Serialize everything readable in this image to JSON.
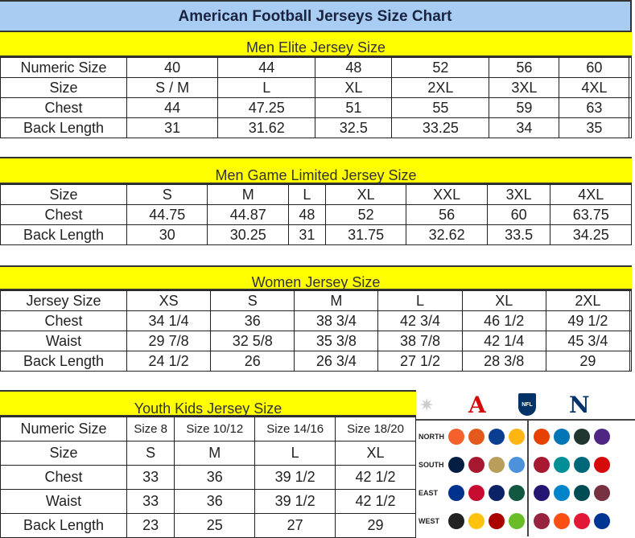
{
  "title": "American Football Jerseys Size Chart",
  "men_elite": {
    "heading": "Men Elite Jersey Size",
    "rows": [
      [
        "Numeric Size",
        "40",
        "44",
        "48",
        "52",
        "56",
        "60",
        ""
      ],
      [
        "Size",
        "S / M",
        "L",
        "XL",
        "2XL",
        "3XL",
        "4XL",
        ""
      ],
      [
        "Chest",
        "44",
        "47.25",
        "51",
        "55",
        "59",
        "63",
        ""
      ],
      [
        "Back Length",
        "31",
        "31.62",
        "32.5",
        "33.25",
        "34",
        "35",
        ""
      ]
    ]
  },
  "men_game": {
    "heading": "Men Game Limited Jersey Size",
    "rows": [
      [
        "Size",
        "S",
        "M",
        "L",
        "XL",
        "XXL",
        "3XL",
        "4XL"
      ],
      [
        "Chest",
        "44.75",
        "44.87",
        "48",
        "52",
        "56",
        "60",
        "63.75"
      ],
      [
        "Back Length",
        "30",
        "30.25",
        "31",
        "31.75",
        "32.62",
        "33.5",
        "34.25"
      ]
    ]
  },
  "women": {
    "heading": "Women Jersey Size",
    "rows": [
      [
        "Jersey Size",
        "XS",
        "S",
        "M",
        "L",
        "XL",
        "2XL",
        ""
      ],
      [
        "Chest",
        "34 1/4",
        "36",
        "38 3/4",
        "42 3/4",
        "46 1/2",
        "49 1/2",
        ""
      ],
      [
        "Waist",
        "29 7/8",
        "32 5/8",
        "35 3/8",
        "38 7/8",
        "42 1/4",
        "45 3/4",
        ""
      ],
      [
        "Back Length",
        "24 1/2",
        "26",
        "26 3/4",
        "27 1/2",
        "28 3/8",
        "29",
        ""
      ]
    ]
  },
  "youth": {
    "heading": "Youth Kids Jersey Size",
    "rows": [
      [
        "Numeric Size",
        "Size 8",
        "Size 10/12",
        "Size 14/16",
        "Size 18/20"
      ],
      [
        "Size",
        "S",
        "M",
        "L",
        "XL"
      ],
      [
        "Chest",
        "33",
        "36",
        "39 1/2",
        "42 1/2"
      ],
      [
        "Waist",
        "33",
        "36",
        "39 1/2",
        "42 1/2"
      ],
      [
        "Back Length",
        "23",
        "25",
        "27",
        "29"
      ]
    ]
  },
  "league_panel": {
    "conferences": [
      "AFC",
      "NFL",
      "NFC"
    ],
    "divisions": [
      "NORTH",
      "SOUTH",
      "EAST",
      "WEST"
    ],
    "afc_colors": [
      [
        "#f4612c",
        "#e35a1c",
        "#0b3d91",
        "#ffb612"
      ],
      [
        "#041e42",
        "#a71930",
        "#b89d5b",
        "#4b92db"
      ],
      [
        "#00338d",
        "#c60c30",
        "#0b2265",
        "#125740"
      ],
      [
        "#222222",
        "#ffc20e",
        "#aa0000",
        "#69be28"
      ]
    ],
    "nfc_colors": [
      [
        "#e64100",
        "#0076b6",
        "#203731",
        "#4f2683"
      ],
      [
        "#a71930",
        "#008e97",
        "#006778",
        "#d50a0a"
      ],
      [
        "#241773",
        "#0085ca",
        "#004c54",
        "#773141"
      ],
      [
        "#97233f",
        "#fb4f14",
        "#e31837",
        "#003594"
      ]
    ]
  }
}
